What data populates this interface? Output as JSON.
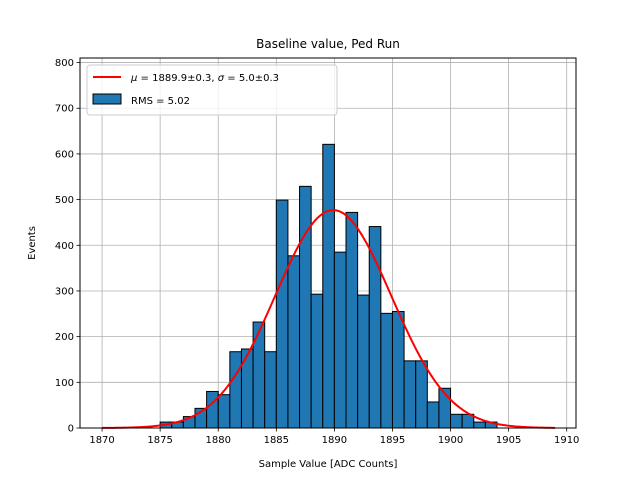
{
  "chart_data": {
    "type": "bar",
    "title": "Baseline value, Ped Run",
    "xlabel": "Sample Value [ADC Counts]",
    "ylabel": "Events",
    "xlim": [
      1868.1,
      1910.8
    ],
    "ylim": [
      0,
      810
    ],
    "xticks": [
      "1870",
      "1875",
      "1880",
      "1885",
      "1890",
      "1895",
      "1900",
      "1905",
      "1910"
    ],
    "yticks": [
      "0",
      "100",
      "200",
      "300",
      "400",
      "500",
      "600",
      "700",
      "800"
    ],
    "grid": true,
    "legend_position": "top-left",
    "bin_width": 1,
    "bins": [
      {
        "x": 1870,
        "count": 0
      },
      {
        "x": 1871,
        "count": 0
      },
      {
        "x": 1872,
        "count": 0
      },
      {
        "x": 1873,
        "count": 0
      },
      {
        "x": 1874,
        "count": 0
      },
      {
        "x": 1875,
        "count": 13
      },
      {
        "x": 1876,
        "count": 13
      },
      {
        "x": 1877,
        "count": 25
      },
      {
        "x": 1878,
        "count": 43
      },
      {
        "x": 1879,
        "count": 80
      },
      {
        "x": 1880,
        "count": 73
      },
      {
        "x": 1881,
        "count": 167
      },
      {
        "x": 1882,
        "count": 173
      },
      {
        "x": 1883,
        "count": 232
      },
      {
        "x": 1884,
        "count": 167
      },
      {
        "x": 1885,
        "count": 499
      },
      {
        "x": 1886,
        "count": 377
      },
      {
        "x": 1887,
        "count": 529
      },
      {
        "x": 1888,
        "count": 293
      },
      {
        "x": 1889,
        "count": 621
      },
      {
        "x": 1890,
        "count": 385
      },
      {
        "x": 1891,
        "count": 472
      },
      {
        "x": 1892,
        "count": 291
      },
      {
        "x": 1893,
        "count": 441
      },
      {
        "x": 1894,
        "count": 251
      },
      {
        "x": 1895,
        "count": 255
      },
      {
        "x": 1896,
        "count": 147
      },
      {
        "x": 1897,
        "count": 147
      },
      {
        "x": 1898,
        "count": 57
      },
      {
        "x": 1899,
        "count": 87
      },
      {
        "x": 1900,
        "count": 30
      },
      {
        "x": 1901,
        "count": 30
      },
      {
        "x": 1902,
        "count": 13
      },
      {
        "x": 1903,
        "count": 13
      },
      {
        "x": 1904,
        "count": 0
      },
      {
        "x": 1905,
        "count": 0
      },
      {
        "x": 1906,
        "count": 0
      },
      {
        "x": 1907,
        "count": 0
      },
      {
        "x": 1908,
        "count": 0
      }
    ],
    "fit": {
      "mu": 1889.9,
      "sigma": 5.0,
      "amplitude": 477,
      "x_range": [
        1870,
        1909
      ]
    },
    "series": [
      {
        "name": "$\\mu = 1889.9 \\pm 0.3$, $\\sigma = 5.0 \\pm 0.3$",
        "kind": "fit-line",
        "color": "#ff0000"
      },
      {
        "name": "RMS = 5.02",
        "kind": "histogram",
        "color": "#1f77b4"
      }
    ]
  },
  "legend": {
    "fit_mu_symbol": "μ",
    "fit_mu_text": " = 1889.9±0.3, ",
    "fit_sigma_symbol": "σ",
    "fit_sigma_text": " = 5.0±0.3",
    "hist_label": "RMS = 5.02"
  },
  "colors": {
    "bar_fill": "#1f77b4",
    "bar_edge": "#000000",
    "fit_line": "#ff0000",
    "grid": "#b0b0b0"
  }
}
